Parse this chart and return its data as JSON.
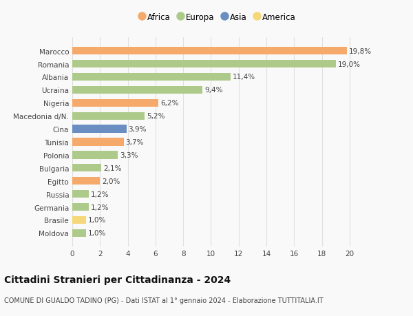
{
  "countries": [
    "Marocco",
    "Romania",
    "Albania",
    "Ucraina",
    "Nigeria",
    "Macedonia d/N.",
    "Cina",
    "Tunisia",
    "Polonia",
    "Bulgaria",
    "Egitto",
    "Russia",
    "Germania",
    "Brasile",
    "Moldova"
  ],
  "values": [
    19.8,
    19.0,
    11.4,
    9.4,
    6.2,
    5.2,
    3.9,
    3.7,
    3.3,
    2.1,
    2.0,
    1.2,
    1.2,
    1.0,
    1.0
  ],
  "labels": [
    "19,8%",
    "19,0%",
    "11,4%",
    "9,4%",
    "6,2%",
    "5,2%",
    "3,9%",
    "3,7%",
    "3,3%",
    "2,1%",
    "2,0%",
    "1,2%",
    "1,2%",
    "1,0%",
    "1,0%"
  ],
  "continents": [
    "Africa",
    "Europa",
    "Europa",
    "Europa",
    "Africa",
    "Europa",
    "Asia",
    "Africa",
    "Europa",
    "Europa",
    "Africa",
    "Europa",
    "Europa",
    "America",
    "Europa"
  ],
  "colors": {
    "Africa": "#F5A96B",
    "Europa": "#AECA8A",
    "Asia": "#6B8EC2",
    "America": "#F5D87A"
  },
  "legend_order": [
    "Africa",
    "Europa",
    "Asia",
    "America"
  ],
  "legend_colors": [
    "#F5A96B",
    "#AECA8A",
    "#6B8EC2",
    "#F5D87A"
  ],
  "xlim": [
    0,
    21
  ],
  "xticks": [
    0,
    2,
    4,
    6,
    8,
    10,
    12,
    14,
    16,
    18,
    20
  ],
  "title": "Cittadini Stranieri per Cittadinanza - 2024",
  "subtitle": "COMUNE DI GUALDO TADINO (PG) - Dati ISTAT al 1° gennaio 2024 - Elaborazione TUTTITALIA.IT",
  "background_color": "#f9f9f9",
  "bar_height": 0.6,
  "grid_color": "#e0e0e0",
  "label_fontsize": 7.5,
  "tick_fontsize": 7.5,
  "title_fontsize": 10,
  "subtitle_fontsize": 7
}
